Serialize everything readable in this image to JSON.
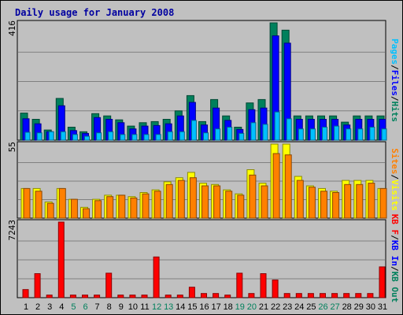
{
  "chart_data": {
    "type": "bar",
    "title": "Daily usage for January 2008",
    "categories": [
      "1",
      "2",
      "3",
      "4",
      "5",
      "6",
      "7",
      "8",
      "9",
      "10",
      "11",
      "12",
      "13",
      "14",
      "15",
      "16",
      "17",
      "18",
      "19",
      "20",
      "21",
      "22",
      "23",
      "24",
      "25",
      "26",
      "27",
      "28",
      "29",
      "30",
      "31"
    ],
    "weekend_days": [
      "5",
      "6",
      "12",
      "13",
      "19",
      "20",
      "26",
      "27"
    ],
    "grid": true,
    "panels": [
      {
        "name": "hits-files-pages",
        "max_label": "416",
        "ylim": [
          0,
          416
        ],
        "legend": [
          {
            "text": "Pages",
            "color": "#00c0ff"
          },
          {
            "text": "/",
            "color": "#000000"
          },
          {
            "text": "Files",
            "color": "#0000ff"
          },
          {
            "text": "/",
            "color": "#000000"
          },
          {
            "text": "Hits",
            "color": "#00805c"
          }
        ],
        "series": [
          {
            "name": "Hits",
            "color": "#00805c",
            "values": [
              96,
              74,
              36,
              148,
              46,
              30,
              94,
              86,
              72,
              50,
              62,
              66,
              74,
              104,
              158,
              66,
              144,
              86,
              46,
              132,
              144,
              416,
              390,
              86,
              86,
              86,
              86,
              64,
              86,
              86,
              86
            ]
          },
          {
            "name": "Files",
            "color": "#0000ff",
            "values": [
              76,
              58,
              30,
              122,
              34,
              24,
              80,
              74,
              62,
              40,
              50,
              52,
              58,
              86,
              134,
              54,
              114,
              70,
              38,
              108,
              114,
              370,
              344,
              74,
              74,
              74,
              74,
              54,
              74,
              74,
              74
            ]
          },
          {
            "name": "Pages",
            "color": "#00c0ff",
            "values": [
              28,
              26,
              30,
              30,
              20,
              14,
              26,
              30,
              20,
              20,
              20,
              20,
              30,
              30,
              70,
              26,
              40,
              46,
              24,
              62,
              56,
              100,
              76,
              40,
              40,
              46,
              50,
              40,
              40,
              46,
              40
            ]
          }
        ]
      },
      {
        "name": "visits-sites",
        "max_label": "55",
        "ylim": [
          0,
          55
        ],
        "legend": [
          {
            "text": "Sites",
            "color": "#ff8000"
          },
          {
            "text": "/",
            "color": "#000000"
          },
          {
            "text": "Visits",
            "color": "#ffff00"
          }
        ],
        "series": [
          {
            "name": "Visits",
            "color": "#ffff00",
            "values": [
              22,
              22,
              12,
              22,
              14,
              8,
              14,
              17,
              17,
              16,
              19,
              21,
              27,
              30,
              34,
              26,
              25,
              21,
              18,
              36,
              26,
              55,
              55,
              31,
              24,
              22,
              20,
              28,
              28,
              28,
              22
            ]
          },
          {
            "name": "Sites",
            "color": "#ff8000",
            "values": [
              22,
              20,
              11,
              22,
              14,
              7,
              13,
              16,
              17,
              15,
              18,
              20,
              25,
              28,
              30,
              24,
              24,
              20,
              17,
              32,
              24,
              48,
              47,
              28,
              23,
              20,
              19,
              25,
              25,
              26,
              22
            ]
          }
        ]
      },
      {
        "name": "kbytes",
        "max_label": "7243",
        "ylim": [
          0,
          7243
        ],
        "legend": [
          {
            "text": "KB F",
            "color": "#ff0000"
          },
          {
            "text": "/",
            "color": "#000000"
          },
          {
            "text": "KB In",
            "color": "#0000ff"
          },
          {
            "text": "/",
            "color": "#000000"
          },
          {
            "text": "KB Out",
            "color": "#00805c"
          }
        ],
        "series": [
          {
            "name": "KB F",
            "color": "#ff0000",
            "values": [
              780,
              2300,
              250,
              7243,
              250,
              250,
              250,
              2350,
              250,
              250,
              250,
              3900,
              250,
              250,
              1000,
              400,
              400,
              250,
              2350,
              400,
              2300,
              1700,
              400,
              400,
              400,
              400,
              400,
              400,
              400,
              400,
              2950
            ]
          }
        ]
      }
    ]
  }
}
